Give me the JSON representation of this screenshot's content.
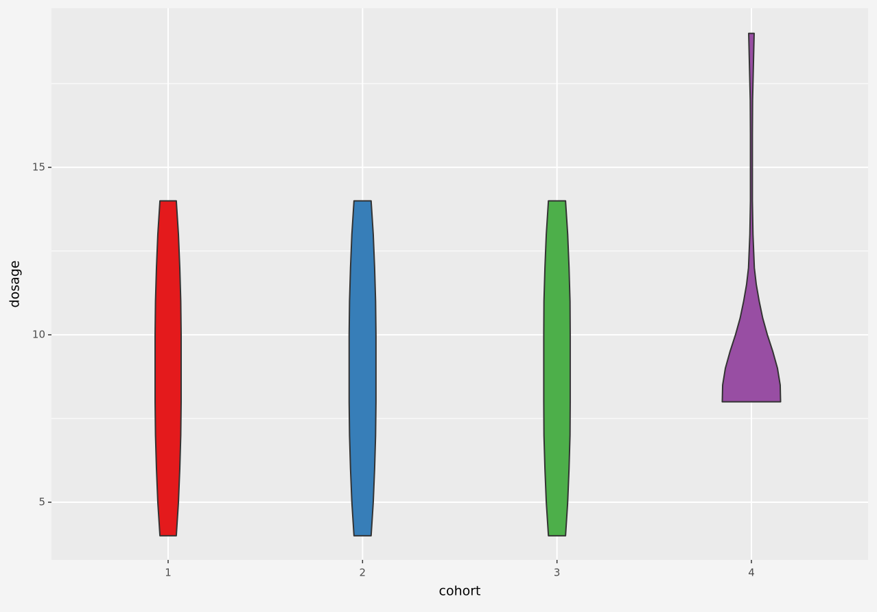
{
  "chart_data": {
    "type": "violin",
    "x_label": "cohort",
    "y_label": "dosage",
    "categories": [
      "1",
      "2",
      "3",
      "4"
    ],
    "ylim": [
      3.28,
      19.75
    ],
    "yticks": [
      5,
      10,
      15
    ],
    "y_minor_ticks": [
      7.5,
      12.5,
      17.5
    ],
    "grid": true,
    "series": [
      {
        "name": "1",
        "color": "#e41a1c",
        "y": [
          4,
          5,
          6,
          7,
          8,
          9,
          10,
          11,
          12,
          13,
          14
        ],
        "density": [
          0.042,
          0.053,
          0.06,
          0.065,
          0.067,
          0.067,
          0.067,
          0.065,
          0.06,
          0.053,
          0.042
        ]
      },
      {
        "name": "2",
        "color": "#377eb8",
        "y": [
          4,
          5,
          6,
          7,
          8,
          9,
          10,
          11,
          12,
          13,
          14
        ],
        "density": [
          0.044,
          0.055,
          0.062,
          0.067,
          0.069,
          0.069,
          0.069,
          0.067,
          0.062,
          0.055,
          0.044
        ]
      },
      {
        "name": "3",
        "color": "#4daf4a",
        "y": [
          4,
          5,
          6,
          7,
          8,
          9,
          10,
          11,
          12,
          13,
          14
        ],
        "density": [
          0.044,
          0.055,
          0.062,
          0.067,
          0.068,
          0.068,
          0.068,
          0.067,
          0.062,
          0.055,
          0.044
        ]
      },
      {
        "name": "4",
        "color": "#984ea3",
        "y": [
          8,
          8.5,
          9,
          9.5,
          10,
          10.5,
          11,
          11.5,
          12,
          13,
          14,
          15,
          16,
          17,
          18,
          19
        ],
        "density": [
          0.15,
          0.148,
          0.134,
          0.11,
          0.082,
          0.058,
          0.04,
          0.025,
          0.015,
          0.008,
          0.005,
          0.005,
          0.005,
          0.006,
          0.01,
          0.014
        ]
      }
    ]
  }
}
